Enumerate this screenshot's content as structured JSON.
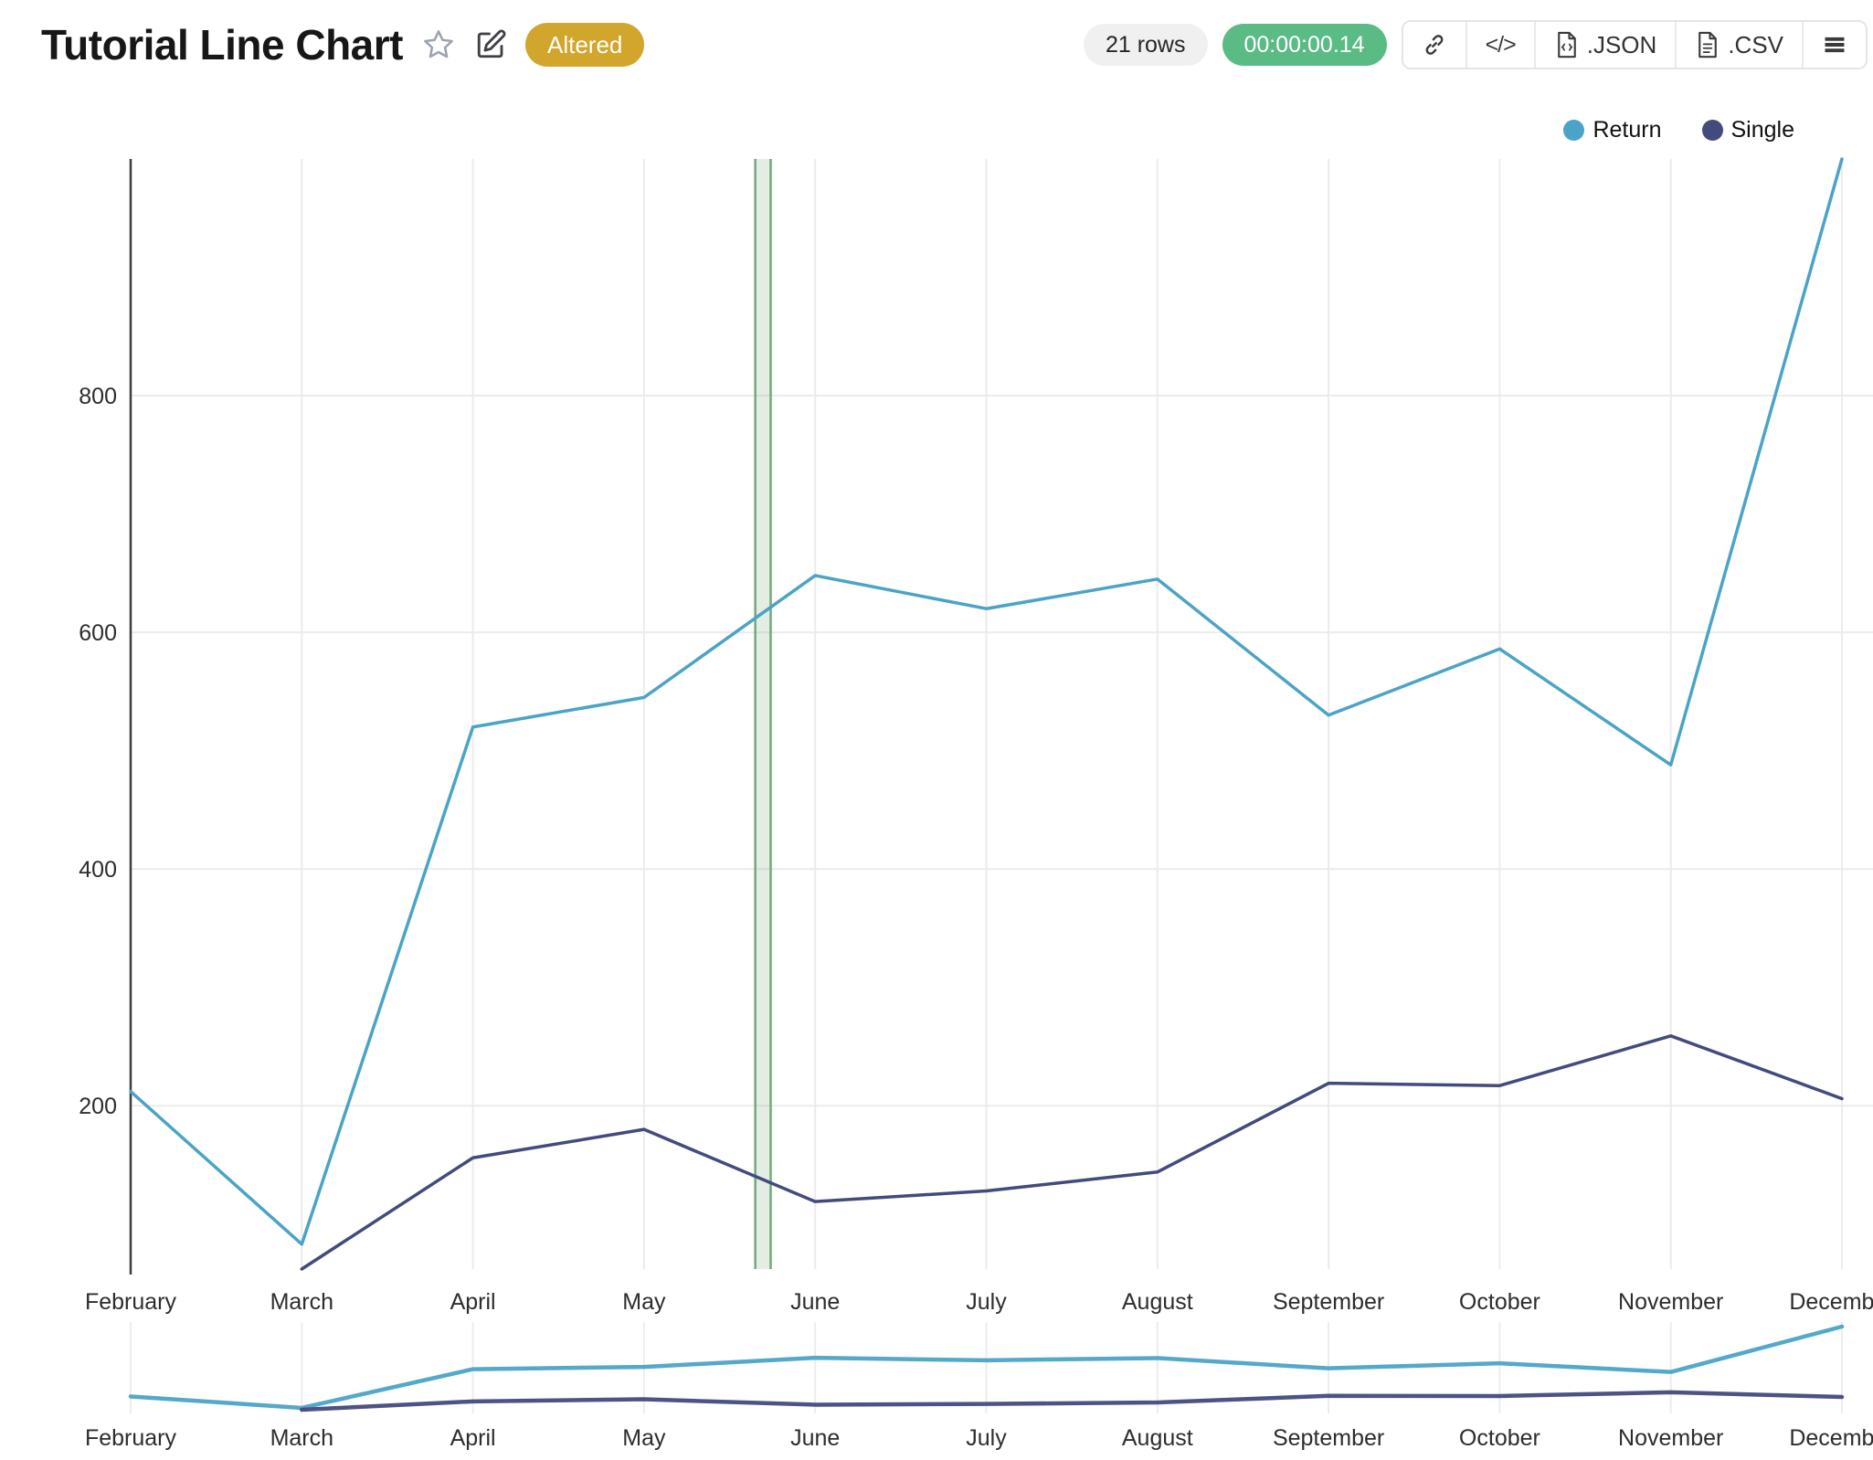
{
  "header": {
    "title": "Tutorial Line Chart",
    "status_badge": "Altered",
    "icons": [
      "star-icon",
      "edit-icon"
    ]
  },
  "toolbar": {
    "rows_badge": "21 rows",
    "timer_badge": "00:00:00.14",
    "timer_color": "#5bbb85",
    "rows_color": "#f0f0f0",
    "buttons": [
      {
        "name": "link-button",
        "icon": "link-icon",
        "label": ""
      },
      {
        "name": "code-button",
        "icon": "code-icon",
        "label": "</>"
      },
      {
        "name": "json-download-button",
        "icon": "json-file-icon",
        "label": ".JSON"
      },
      {
        "name": "csv-download-button",
        "icon": "csv-file-icon",
        "label": ".CSV"
      },
      {
        "name": "menu-button",
        "icon": "hamburger-icon",
        "label": ""
      }
    ]
  },
  "legend": {
    "items": [
      {
        "label": "Return",
        "color": "#4ba3c7"
      },
      {
        "label": "Single",
        "color": "#434a7d"
      }
    ]
  },
  "chart_data": {
    "type": "line",
    "title": "Tutorial Line Chart",
    "categories": [
      "February",
      "March",
      "April",
      "May",
      "June",
      "July",
      "August",
      "September",
      "October",
      "November",
      "December"
    ],
    "series": [
      {
        "name": "Return",
        "color": "#4ba3c7",
        "values": [
          212,
          83,
          520,
          545,
          648,
          620,
          645,
          530,
          586,
          488,
          1000
        ]
      },
      {
        "name": "Single",
        "color": "#434a7d",
        "values": [
          null,
          62,
          156,
          180,
          119,
          128,
          144,
          219,
          217,
          259,
          206
        ]
      }
    ],
    "xlabel": "",
    "ylabel": "",
    "ylim": [
      62,
      1000
    ],
    "yticks": [
      200,
      400,
      600,
      800
    ],
    "grid": true,
    "legend_position": "top-right",
    "gridline_color": "#ebebeb",
    "axis_line_color": "#3d3d3d",
    "tick_label_color": "#2d2d2d",
    "highlight_band": {
      "from_category_fraction": 3.65,
      "to_category_fraction": 3.74,
      "fill": "rgba(127,174,133,0.22)",
      "edge_color": "#74a87b"
    },
    "mini_navigator": {
      "enabled": true,
      "categories_repeated": [
        "February",
        "March",
        "April",
        "May",
        "June",
        "July",
        "August",
        "September",
        "October",
        "November",
        "December"
      ]
    }
  }
}
